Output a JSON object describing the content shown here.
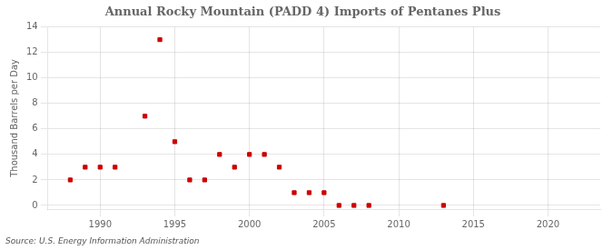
{
  "chart_data": {
    "type": "scatter",
    "title": "Annual Rocky Mountain (PADD 4) Imports of Pentanes Plus",
    "ylabel": "Thousand Barrels per Day",
    "annotations": [
      "Source: U.S. Energy Information Administration"
    ],
    "x": [
      1988,
      1989,
      1990,
      1991,
      1993,
      1994,
      1995,
      1996,
      1997,
      1998,
      1999,
      2000,
      2001,
      2002,
      2003,
      2004,
      2005,
      2006,
      2007,
      2008,
      2013
    ],
    "values": [
      2,
      3,
      3,
      3,
      7,
      13,
      5,
      2,
      2,
      4,
      3,
      4,
      4,
      3,
      1,
      1,
      1,
      0,
      0,
      0,
      0
    ],
    "color": "#cc0000",
    "marker": "square",
    "xlim": [
      1986.5,
      2023.5
    ],
    "ylim": [
      -0.3,
      14
    ],
    "xticks": [
      1990,
      1995,
      2000,
      2005,
      2010,
      2015,
      2020
    ],
    "yticks": [
      0,
      2,
      4,
      6,
      8,
      10,
      12,
      14
    ],
    "grid": true
  }
}
